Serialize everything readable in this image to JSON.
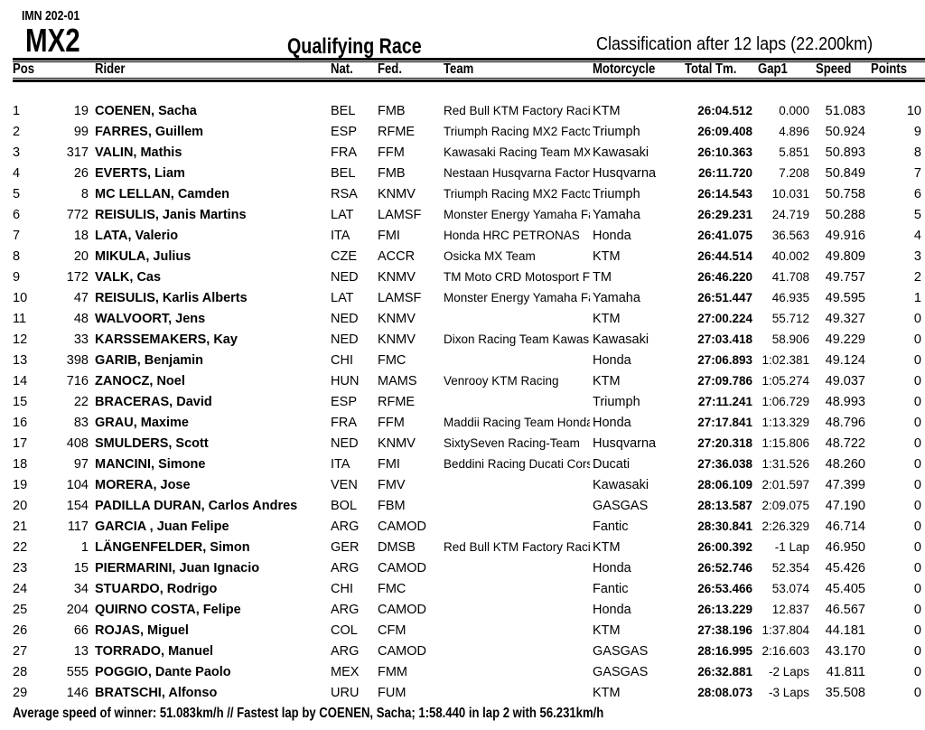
{
  "header": {
    "event_code": "IMN 202-01",
    "class": "MX2",
    "title": "Qualifying Race",
    "subtitle": "Classification after 12 laps (22.200km)"
  },
  "columns": {
    "pos": "Pos",
    "rider": "Rider",
    "nat": "Nat.",
    "fed": "Fed.",
    "team": "Team",
    "moto": "Motorcycle",
    "time": "Total Tm.",
    "gap": "Gap1",
    "speed": "Speed",
    "pts": "Points"
  },
  "rows": [
    {
      "pos": "1",
      "num": "19",
      "rider": "COENEN, Sacha",
      "nat": "BEL",
      "fed": "FMB",
      "team": "Red Bull KTM Factory Raci",
      "moto": "KTM",
      "time": "26:04.512",
      "gap": "0.000",
      "speed": "51.083",
      "pts": "10"
    },
    {
      "pos": "2",
      "num": "99",
      "rider": "FARRES, Guillem",
      "nat": "ESP",
      "fed": "RFME",
      "team": "Triumph Racing MX2 Facto",
      "moto": "Triumph",
      "time": "26:09.408",
      "gap": "4.896",
      "speed": "50.924",
      "pts": "9"
    },
    {
      "pos": "3",
      "num": "317",
      "rider": "VALIN, Mathis",
      "nat": "FRA",
      "fed": "FFM",
      "team": "Kawasaki Racing Team MX",
      "moto": "Kawasaki",
      "time": "26:10.363",
      "gap": "5.851",
      "speed": "50.893",
      "pts": "8"
    },
    {
      "pos": "4",
      "num": "26",
      "rider": "EVERTS, Liam",
      "nat": "BEL",
      "fed": "FMB",
      "team": "Nestaan Husqvarna Factory",
      "moto": "Husqvarna",
      "time": "26:11.720",
      "gap": "7.208",
      "speed": "50.849",
      "pts": "7"
    },
    {
      "pos": "5",
      "num": "8",
      "rider": "MC LELLAN, Camden",
      "nat": "RSA",
      "fed": "KNMV",
      "team": "Triumph Racing MX2 Facto",
      "moto": "Triumph",
      "time": "26:14.543",
      "gap": "10.031",
      "speed": "50.758",
      "pts": "6"
    },
    {
      "pos": "6",
      "num": "772",
      "rider": "REISULIS, Janis Martins",
      "nat": "LAT",
      "fed": "LAMSF",
      "team": "Monster Energy Yamaha Fa",
      "moto": "Yamaha",
      "time": "26:29.231",
      "gap": "24.719",
      "speed": "50.288",
      "pts": "5"
    },
    {
      "pos": "7",
      "num": "18",
      "rider": "LATA, Valerio",
      "nat": "ITA",
      "fed": "FMI",
      "team": "Honda HRC PETRONAS",
      "moto": "Honda",
      "time": "26:41.075",
      "gap": "36.563",
      "speed": "49.916",
      "pts": "4"
    },
    {
      "pos": "8",
      "num": "20",
      "rider": "MIKULA, Julius",
      "nat": "CZE",
      "fed": "ACCR",
      "team": "Osicka MX Team",
      "moto": "KTM",
      "time": "26:44.514",
      "gap": "40.002",
      "speed": "49.809",
      "pts": "3"
    },
    {
      "pos": "9",
      "num": "172",
      "rider": "VALK, Cas",
      "nat": "NED",
      "fed": "KNMV",
      "team": "TM Moto CRD Motosport F",
      "moto": "TM",
      "time": "26:46.220",
      "gap": "41.708",
      "speed": "49.757",
      "pts": "2"
    },
    {
      "pos": "10",
      "num": "47",
      "rider": "REISULIS, Karlis Alberts",
      "nat": "LAT",
      "fed": "LAMSF",
      "team": "Monster Energy Yamaha Fa",
      "moto": "Yamaha",
      "time": "26:51.447",
      "gap": "46.935",
      "speed": "49.595",
      "pts": "1"
    },
    {
      "pos": "11",
      "num": "48",
      "rider": "WALVOORT, Jens",
      "nat": "NED",
      "fed": "KNMV",
      "team": "",
      "moto": "KTM",
      "time": "27:00.224",
      "gap": "55.712",
      "speed": "49.327",
      "pts": "0"
    },
    {
      "pos": "12",
      "num": "33",
      "rider": "KARSSEMAKERS, Kay",
      "nat": "NED",
      "fed": "KNMV",
      "team": "Dixon Racing Team Kawas",
      "moto": "Kawasaki",
      "time": "27:03.418",
      "gap": "58.906",
      "speed": "49.229",
      "pts": "0"
    },
    {
      "pos": "13",
      "num": "398",
      "rider": "GARIB, Benjamin",
      "nat": "CHI",
      "fed": "FMC",
      "team": "",
      "moto": "Honda",
      "time": "27:06.893",
      "gap": "1:02.381",
      "speed": "49.124",
      "pts": "0"
    },
    {
      "pos": "14",
      "num": "716",
      "rider": "ZANOCZ, Noel",
      "nat": "HUN",
      "fed": "MAMS",
      "team": "Venrooy KTM Racing",
      "moto": "KTM",
      "time": "27:09.786",
      "gap": "1:05.274",
      "speed": "49.037",
      "pts": "0"
    },
    {
      "pos": "15",
      "num": "22",
      "rider": "BRACERAS, David",
      "nat": "ESP",
      "fed": "RFME",
      "team": "",
      "moto": "Triumph",
      "time": "27:11.241",
      "gap": "1:06.729",
      "speed": "48.993",
      "pts": "0"
    },
    {
      "pos": "16",
      "num": "83",
      "rider": "GRAU, Maxime",
      "nat": "FRA",
      "fed": "FFM",
      "team": "Maddii Racing Team Honda",
      "moto": "Honda",
      "time": "27:17.841",
      "gap": "1:13.329",
      "speed": "48.796",
      "pts": "0"
    },
    {
      "pos": "17",
      "num": "408",
      "rider": "SMULDERS, Scott",
      "nat": "NED",
      "fed": "KNMV",
      "team": "SixtySeven Racing-Team",
      "moto": "Husqvarna",
      "time": "27:20.318",
      "gap": "1:15.806",
      "speed": "48.722",
      "pts": "0"
    },
    {
      "pos": "18",
      "num": "97",
      "rider": "MANCINI, Simone",
      "nat": "ITA",
      "fed": "FMI",
      "team": "Beddini Racing Ducati Cors",
      "moto": "Ducati",
      "time": "27:36.038",
      "gap": "1:31.526",
      "speed": "48.260",
      "pts": "0"
    },
    {
      "pos": "19",
      "num": "104",
      "rider": "MORERA, Jose",
      "nat": "VEN",
      "fed": "FMV",
      "team": "",
      "moto": "Kawasaki",
      "time": "28:06.109",
      "gap": "2:01.597",
      "speed": "47.399",
      "pts": "0"
    },
    {
      "pos": "20",
      "num": "154",
      "rider": "PADILLA DURAN, Carlos Andres",
      "nat": "BOL",
      "fed": "FBM",
      "team": "",
      "moto": "GASGAS",
      "time": "28:13.587",
      "gap": "2:09.075",
      "speed": "47.190",
      "pts": "0"
    },
    {
      "pos": "21",
      "num": "117",
      "rider": "GARCIA , Juan Felipe",
      "nat": "ARG",
      "fed": "CAMOD",
      "team": "",
      "moto": "Fantic",
      "time": "28:30.841",
      "gap": "2:26.329",
      "speed": "46.714",
      "pts": "0"
    },
    {
      "pos": "22",
      "num": "1",
      "rider": "LÄNGENFELDER, Simon",
      "nat": "GER",
      "fed": "DMSB",
      "team": "Red Bull KTM Factory Raci",
      "moto": "KTM",
      "time": "26:00.392",
      "gap": "-1 Lap",
      "speed": "46.950",
      "pts": "0"
    },
    {
      "pos": "23",
      "num": "15",
      "rider": "PIERMARINI, Juan Ignacio",
      "nat": "ARG",
      "fed": "CAMOD",
      "team": "",
      "moto": "Honda",
      "time": "26:52.746",
      "gap": "52.354",
      "speed": "45.426",
      "pts": "0"
    },
    {
      "pos": "24",
      "num": "34",
      "rider": "STUARDO, Rodrigo",
      "nat": "CHI",
      "fed": "FMC",
      "team": "",
      "moto": "Fantic",
      "time": "26:53.466",
      "gap": "53.074",
      "speed": "45.405",
      "pts": "0"
    },
    {
      "pos": "25",
      "num": "204",
      "rider": "QUIRNO COSTA, Felipe",
      "nat": "ARG",
      "fed": "CAMOD",
      "team": "",
      "moto": "Honda",
      "time": "26:13.229",
      "gap": "12.837",
      "speed": "46.567",
      "pts": "0"
    },
    {
      "pos": "26",
      "num": "66",
      "rider": "ROJAS, Miguel",
      "nat": "COL",
      "fed": "CFM",
      "team": "",
      "moto": "KTM",
      "time": "27:38.196",
      "gap": "1:37.804",
      "speed": "44.181",
      "pts": "0"
    },
    {
      "pos": "27",
      "num": "13",
      "rider": "TORRADO, Manuel",
      "nat": "ARG",
      "fed": "CAMOD",
      "team": "",
      "moto": "GASGAS",
      "time": "28:16.995",
      "gap": "2:16.603",
      "speed": "43.170",
      "pts": "0"
    },
    {
      "pos": "28",
      "num": "555",
      "rider": "POGGIO, Dante Paolo",
      "nat": "MEX",
      "fed": "FMM",
      "team": "",
      "moto": "GASGAS",
      "time": "26:32.881",
      "gap": "-2 Laps",
      "speed": "41.811",
      "pts": "0"
    },
    {
      "pos": "29",
      "num": "146",
      "rider": "BRATSCHI, Alfonso",
      "nat": "URU",
      "fed": "FUM",
      "team": "",
      "moto": "KTM",
      "time": "28:08.073",
      "gap": "-3 Laps",
      "speed": "35.508",
      "pts": "0"
    }
  ],
  "footer": "Average speed of winner: 51.083km/h    //    Fastest lap by COENEN, Sacha; 1:58.440 in lap 2 with 56.231km/h"
}
